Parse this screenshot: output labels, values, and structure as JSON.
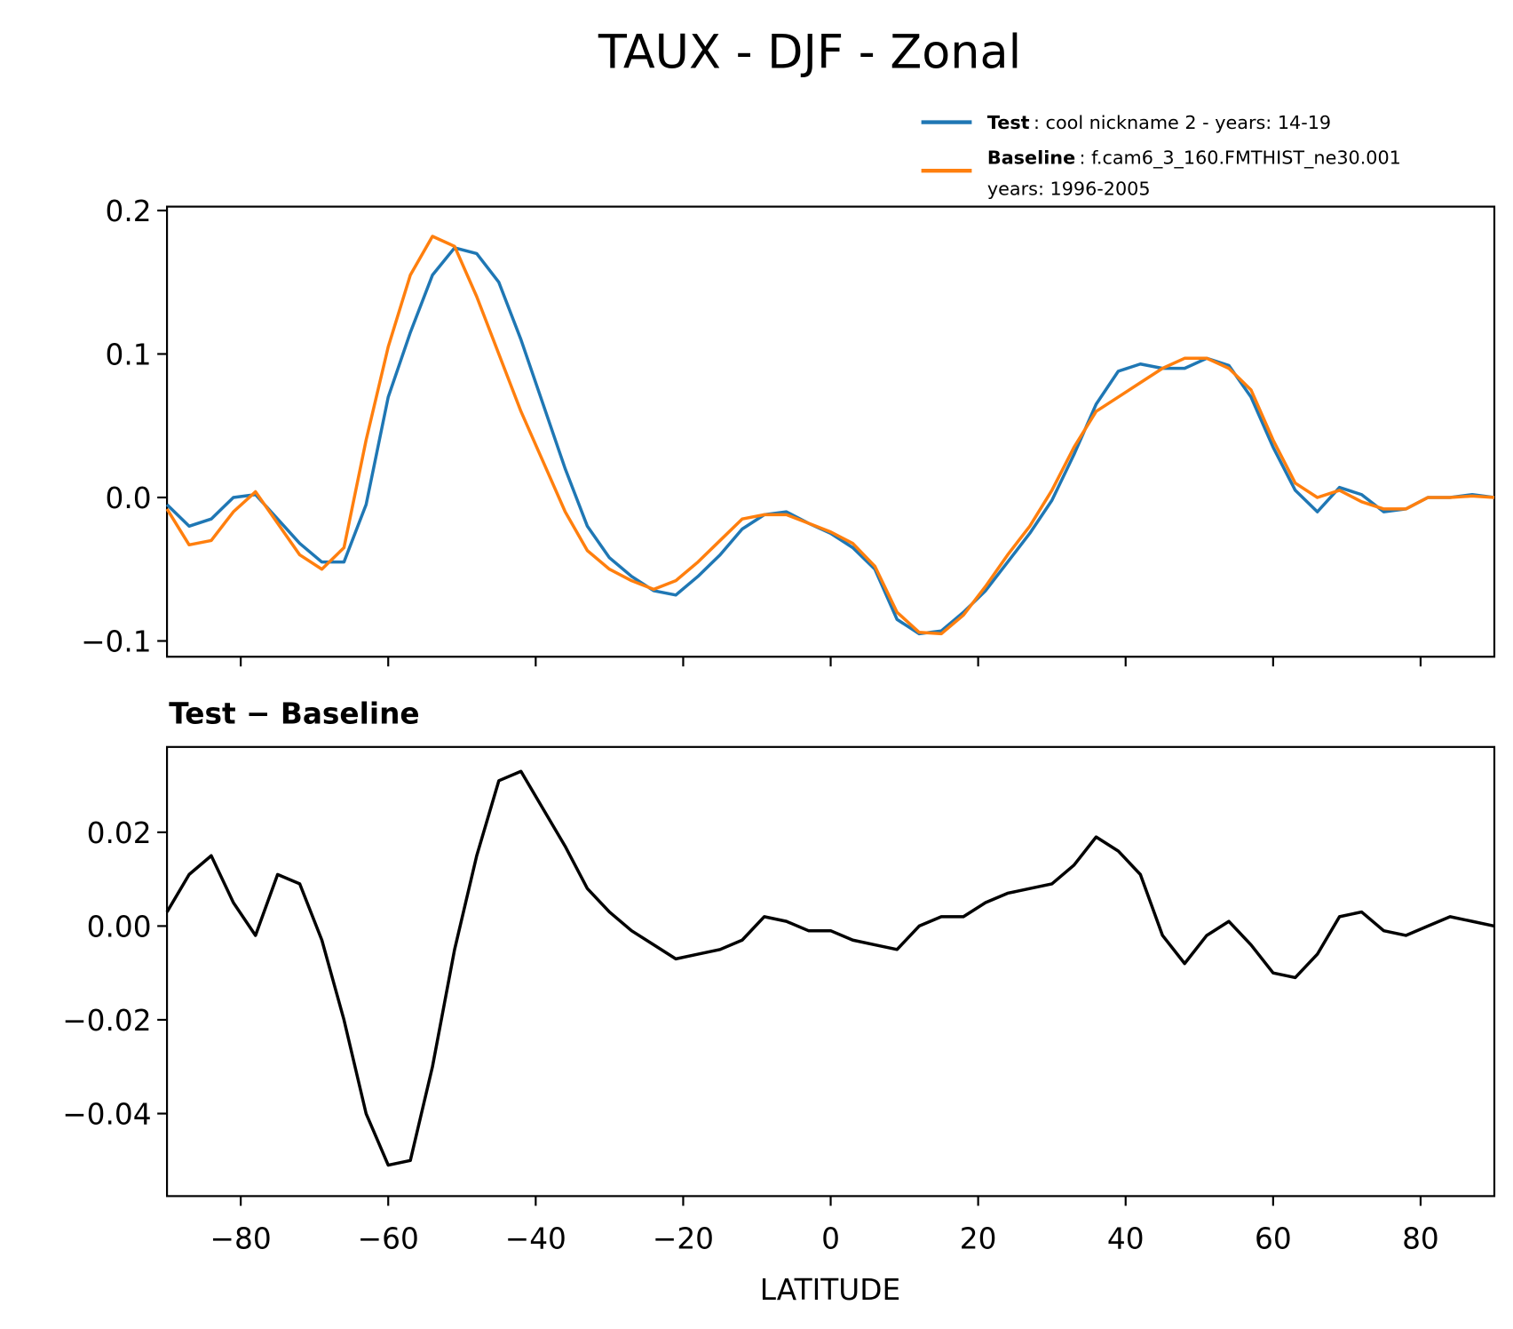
{
  "chart_data": [
    {
      "type": "line",
      "title": "TAUX - DJF - Zonal",
      "x": [
        -90,
        -87,
        -84,
        -81,
        -78,
        -75,
        -72,
        -69,
        -66,
        -63,
        -60,
        -57,
        -54,
        -51,
        -48,
        -45,
        -42,
        -39,
        -36,
        -33,
        -30,
        -27,
        -24,
        -21,
        -18,
        -15,
        -12,
        -9,
        -6,
        -3,
        0,
        3,
        6,
        9,
        12,
        15,
        18,
        21,
        24,
        27,
        30,
        33,
        36,
        39,
        42,
        45,
        48,
        51,
        54,
        57,
        60,
        63,
        66,
        69,
        72,
        75,
        78,
        81,
        84,
        87,
        90
      ],
      "series": [
        {
          "name": "Test",
          "description": [
            ": cool nickname 2 - years: 14-19"
          ],
          "color": "#1f77b4",
          "values": [
            -0.005,
            -0.02,
            -0.015,
            0.0,
            0.002,
            -0.015,
            -0.032,
            -0.045,
            -0.045,
            -0.005,
            0.07,
            0.115,
            0.155,
            0.174,
            0.17,
            0.15,
            0.11,
            0.065,
            0.02,
            -0.02,
            -0.042,
            -0.055,
            -0.065,
            -0.068,
            -0.055,
            -0.04,
            -0.022,
            -0.012,
            -0.01,
            -0.018,
            -0.025,
            -0.035,
            -0.05,
            -0.085,
            -0.095,
            -0.093,
            -0.08,
            -0.065,
            -0.045,
            -0.025,
            -0.002,
            0.03,
            0.065,
            0.088,
            0.093,
            0.09,
            0.09,
            0.097,
            0.092,
            0.07,
            0.035,
            0.005,
            -0.01,
            0.007,
            0.002,
            -0.01,
            -0.008,
            0.0,
            0.0,
            0.002,
            0.0
          ]
        },
        {
          "name": "Baseline",
          "description": [
            ": f.cam6_3_160.FMTHIST_ne30.001",
            "years: 1996-2005"
          ],
          "color": "#ff7f0e",
          "values": [
            -0.008,
            -0.033,
            -0.03,
            -0.01,
            0.004,
            -0.018,
            -0.04,
            -0.05,
            -0.035,
            0.04,
            0.105,
            0.155,
            0.182,
            0.175,
            0.14,
            0.1,
            0.06,
            0.025,
            -0.01,
            -0.037,
            -0.05,
            -0.058,
            -0.064,
            -0.058,
            -0.045,
            -0.03,
            -0.015,
            -0.012,
            -0.012,
            -0.018,
            -0.024,
            -0.032,
            -0.048,
            -0.08,
            -0.094,
            -0.095,
            -0.082,
            -0.062,
            -0.04,
            -0.02,
            0.005,
            0.035,
            0.06,
            0.07,
            0.08,
            0.09,
            0.097,
            0.097,
            0.09,
            0.075,
            0.04,
            0.01,
            0.0,
            0.005,
            -0.003,
            -0.008,
            -0.008,
            0.0,
            0.0,
            0.001,
            0.0
          ]
        }
      ],
      "xlim": [
        -90,
        90
      ],
      "xticks": [
        -80,
        -60,
        -40,
        -20,
        0,
        20,
        40,
        60,
        80
      ],
      "ylim": [
        -0.111,
        0.2027
      ],
      "yticks": [
        {
          "value": -0.1,
          "label": "−0.1"
        },
        {
          "value": 0,
          "label": "0.0"
        },
        0.1,
        0.2
      ]
    },
    {
      "type": "line",
      "title": "Test − Baseline",
      "xlabel": "LATITUDE",
      "x": [
        -90,
        -87,
        -84,
        -81,
        -78,
        -75,
        -72,
        -69,
        -66,
        -63,
        -60,
        -57,
        -54,
        -51,
        -48,
        -45,
        -42,
        -39,
        -36,
        -33,
        -30,
        -27,
        -24,
        -21,
        -18,
        -15,
        -12,
        -9,
        -6,
        -3,
        0,
        3,
        6,
        9,
        12,
        15,
        18,
        21,
        24,
        27,
        30,
        33,
        36,
        39,
        42,
        45,
        48,
        51,
        54,
        57,
        60,
        63,
        66,
        69,
        72,
        75,
        78,
        81,
        84,
        87,
        90
      ],
      "series": [
        {
          "color": "#000000",
          "values": [
            0.003,
            0.011,
            0.015,
            0.005,
            -0.002,
            0.011,
            0.009,
            -0.003,
            -0.02,
            -0.04,
            -0.051,
            -0.05,
            -0.03,
            -0.005,
            0.015,
            0.031,
            0.033,
            0.025,
            0.017,
            0.008,
            0.003,
            -0.001,
            -0.004,
            -0.007,
            -0.006,
            -0.005,
            -0.003,
            0.002,
            0.001,
            -0.001,
            -0.001,
            -0.003,
            -0.004,
            -0.005,
            0.0,
            0.002,
            0.002,
            0.005,
            0.007,
            0.008,
            0.009,
            0.013,
            0.019,
            0.016,
            0.011,
            -0.002,
            -0.008,
            -0.002,
            0.001,
            -0.004,
            -0.01,
            -0.011,
            -0.006,
            0.002,
            0.003,
            -0.001,
            -0.002,
            0.0,
            0.002,
            0.001,
            0.0
          ]
        }
      ],
      "xlim": [
        -90,
        90
      ],
      "xticks": [
        {
          "value": -80,
          "label": "−80"
        },
        {
          "value": -60,
          "label": "−60"
        },
        {
          "value": -40,
          "label": "−40"
        },
        {
          "value": -20,
          "label": "−20"
        },
        0,
        20,
        40,
        60,
        80
      ],
      "ylim": [
        -0.0576,
        0.0382
      ],
      "yticks": [
        {
          "value": -0.04,
          "label": "−0.04"
        },
        {
          "value": -0.02,
          "label": "−0.02"
        },
        {
          "value": 0,
          "label": "0.00"
        },
        0.02
      ]
    }
  ]
}
